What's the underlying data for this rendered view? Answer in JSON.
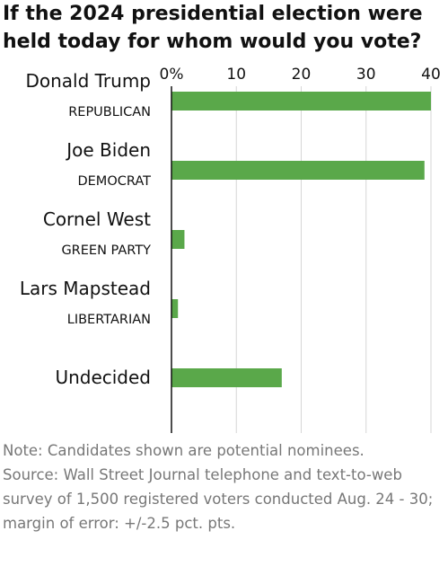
{
  "chart_data": {
    "type": "bar",
    "orientation": "horizontal",
    "title": "If the 2024 presidential election were held today for whom would you vote?",
    "categories": [
      "Donald Trump",
      "Joe Biden",
      "Cornel West",
      "Lars Mapstead",
      "Undecided"
    ],
    "category_sublabels": [
      "REPUBLICAN",
      "DEMOCRAT",
      "GREEN PARTY",
      "LIBERTARIAN",
      ""
    ],
    "values": [
      40,
      39,
      2,
      1,
      17
    ],
    "xlim": [
      0,
      40
    ],
    "xticks": [
      0,
      10,
      20,
      30,
      40
    ],
    "xtick_labels": [
      "0%",
      "10",
      "20",
      "30",
      "40"
    ],
    "xlabel": "",
    "ylabel": "",
    "bar_color": "#5aa84a",
    "grid": "vertical gridlines",
    "legend": "none"
  },
  "notes": [
    "Note: Candidates shown are potential nominees.",
    "Source: Wall Street Journal telephone and text-to-web survey of 1,500 registered voters conducted Aug. 24 - 30; margin of error: +/-2.5 pct. pts."
  ]
}
